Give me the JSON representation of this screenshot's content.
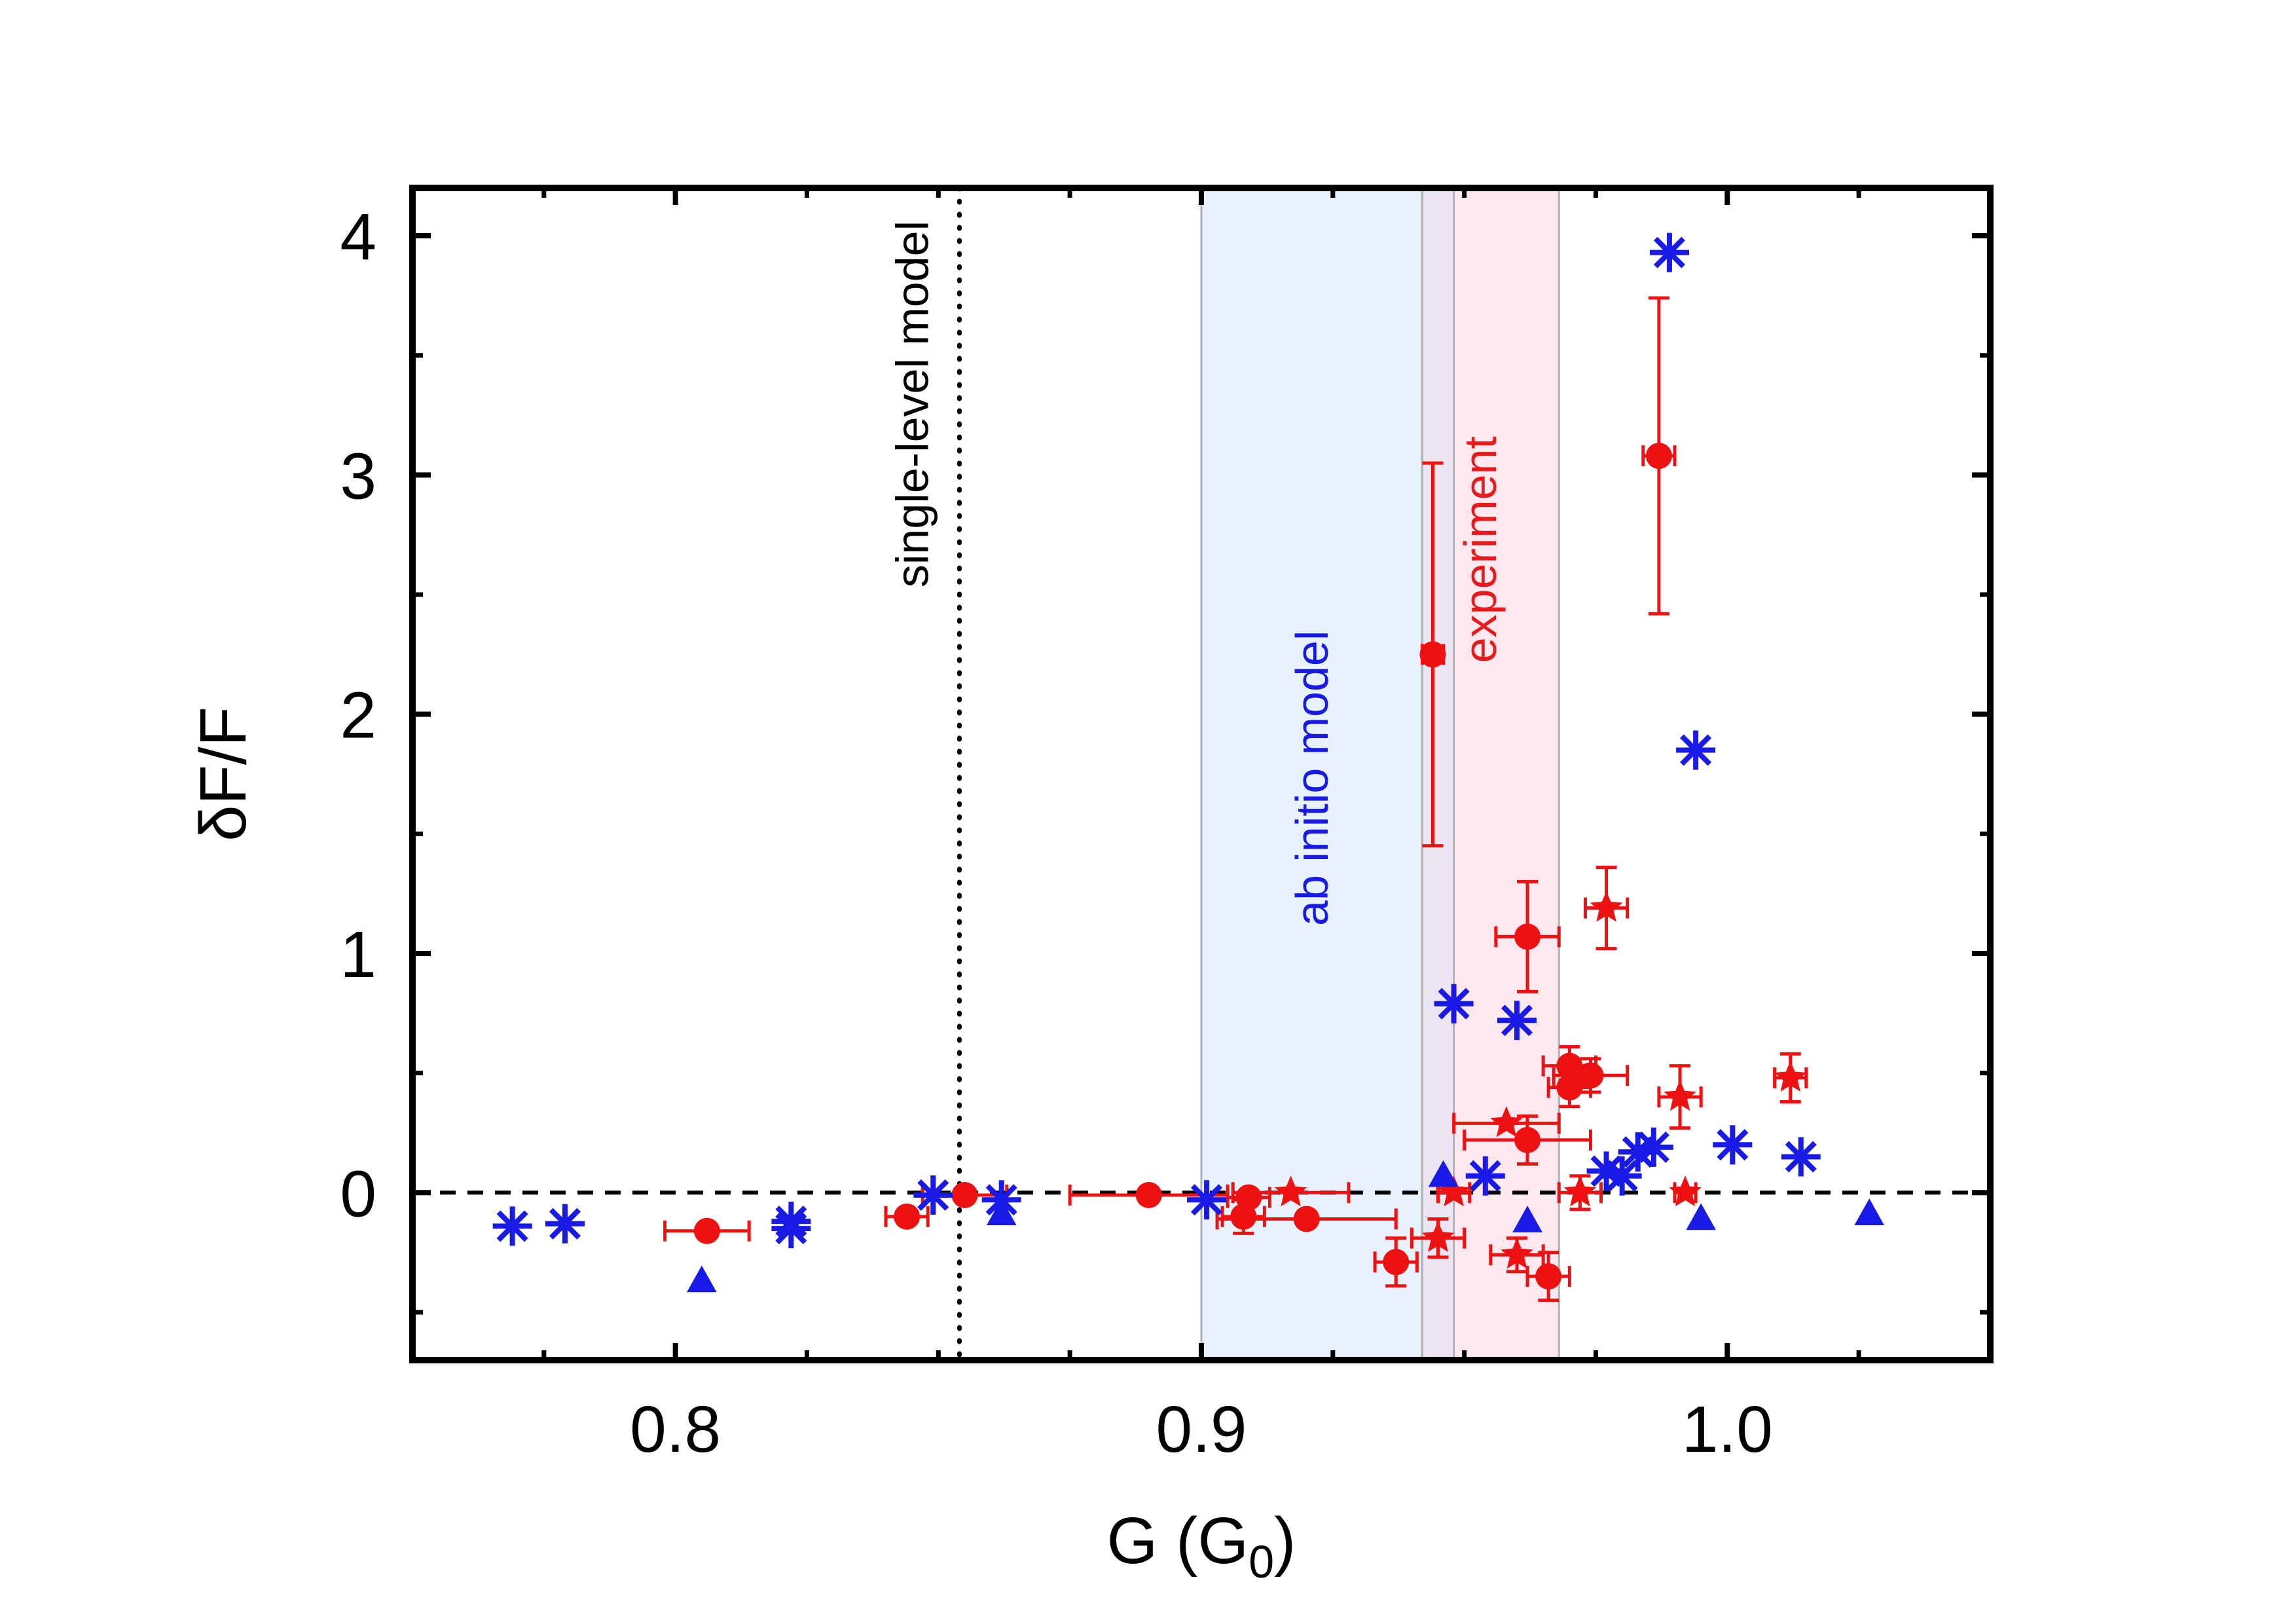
{
  "chart_data": {
    "type": "scatter",
    "title": "",
    "xlabel": "G (G",
    "xlabel_sub": "0",
    "xlabel_close": ")",
    "ylabel": "δF/F",
    "xlim": [
      0.75,
      1.05
    ],
    "ylim": [
      -0.7,
      4.2
    ],
    "x_ticks": [
      0.8,
      0.9,
      1.0
    ],
    "x_tick_labels": [
      "0.8",
      "0.9",
      "1.0"
    ],
    "y_ticks": [
      0,
      1,
      2,
      3,
      4
    ],
    "y_tick_labels": [
      "0",
      "1",
      "2",
      "3",
      "4"
    ],
    "grid": false,
    "legend": "none",
    "reference_lines": [
      {
        "kind": "horizontal",
        "y": 0,
        "style": "dashed",
        "color": "#000000"
      },
      {
        "kind": "vertical",
        "x": 0.854,
        "style": "dotted",
        "color": "#000000",
        "label": "single-level model"
      }
    ],
    "bands": [
      {
        "x0": 0.9,
        "x1": 0.948,
        "color": "#e8f2fc",
        "label": "ab initio model",
        "label_color": "#1a1ae6"
      },
      {
        "x0": 0.942,
        "x1": 0.968,
        "color": "#fce8ee",
        "label": "experiment",
        "label_color": "#e61a1a"
      }
    ],
    "overlap_color": "#ebe4f2",
    "colors": {
      "red": "#ee1111",
      "blue": "#1a1ae6"
    },
    "series": [
      {
        "marker": "circle",
        "color": "#ee1111",
        "points": [
          {
            "x": 0.806,
            "y": -0.16,
            "xerr": 0.008,
            "yerr": 0
          },
          {
            "x": 0.844,
            "y": -0.1,
            "xerr": 0.004,
            "yerr": 0
          },
          {
            "x": 0.855,
            "y": -0.01,
            "xerr": 0.008,
            "yerr": 0
          },
          {
            "x": 0.89,
            "y": -0.01,
            "xerr": 0.015,
            "yerr": 0
          },
          {
            "x": 0.908,
            "y": -0.1,
            "xerr": 0.004,
            "yerr": 0.07
          },
          {
            "x": 0.92,
            "y": -0.11,
            "xerr": 0.017,
            "yerr": 0
          },
          {
            "x": 0.909,
            "y": -0.02,
            "xerr": 0.004,
            "yerr": 0
          },
          {
            "x": 0.937,
            "y": -0.29,
            "xerr": 0.004,
            "yerr": 0.1
          },
          {
            "x": 0.944,
            "y": 2.25,
            "xerr": 0.002,
            "yerr": 0.8
          },
          {
            "x": 0.962,
            "y": 1.07,
            "xerr": 0.006,
            "yerr": 0.23
          },
          {
            "x": 0.962,
            "y": 0.22,
            "xerr": 0.012,
            "yerr": 0.1
          },
          {
            "x": 0.97,
            "y": 0.44,
            "xerr": 0.004,
            "yerr": 0.08
          },
          {
            "x": 0.97,
            "y": 0.53,
            "xerr": 0.005,
            "yerr": 0.08
          },
          {
            "x": 0.974,
            "y": 0.49,
            "xerr": 0.007,
            "yerr": 0.07
          },
          {
            "x": 0.966,
            "y": -0.35,
            "xerr": 0.004,
            "yerr": 0.1
          },
          {
            "x": 0.987,
            "y": 3.08,
            "xerr": 0.003,
            "yerr": 0.66
          }
        ]
      },
      {
        "marker": "star",
        "color": "#ee1111",
        "points": [
          {
            "x": 0.917,
            "y": 0.0,
            "xerr": 0.011,
            "yerr": 0
          },
          {
            "x": 0.945,
            "y": -0.19,
            "xerr": 0.005,
            "yerr": 0.08
          },
          {
            "x": 0.948,
            "y": 0.0,
            "xerr": 0.003,
            "yerr": 0
          },
          {
            "x": 0.958,
            "y": 0.29,
            "xerr": 0.01,
            "yerr": 0
          },
          {
            "x": 0.96,
            "y": -0.26,
            "xerr": 0.005,
            "yerr": 0.07
          },
          {
            "x": 0.972,
            "y": 0.0,
            "xerr": 0.004,
            "yerr": 0.07
          },
          {
            "x": 0.977,
            "y": 1.19,
            "xerr": 0.004,
            "yerr": 0.17
          },
          {
            "x": 0.991,
            "y": 0.4,
            "xerr": 0.004,
            "yerr": 0.13
          },
          {
            "x": 0.992,
            "y": 0.0,
            "xerr": 0.002,
            "yerr": 0
          },
          {
            "x": 1.012,
            "y": 0.48,
            "xerr": 0.003,
            "yerr": 0.1
          }
        ]
      },
      {
        "marker": "asterisk",
        "color": "#1a1ae6",
        "points": [
          {
            "x": 0.769,
            "y": -0.14
          },
          {
            "x": 0.779,
            "y": -0.13
          },
          {
            "x": 0.822,
            "y": -0.12
          },
          {
            "x": 0.822,
            "y": -0.15
          },
          {
            "x": 0.849,
            "y": -0.01
          },
          {
            "x": 0.862,
            "y": -0.03
          },
          {
            "x": 0.901,
            "y": -0.03
          },
          {
            "x": 0.948,
            "y": 0.79
          },
          {
            "x": 0.96,
            "y": 0.72
          },
          {
            "x": 0.954,
            "y": 0.07
          },
          {
            "x": 0.977,
            "y": 0.09
          },
          {
            "x": 0.98,
            "y": 0.07
          },
          {
            "x": 0.983,
            "y": 0.17
          },
          {
            "x": 0.986,
            "y": 0.19
          },
          {
            "x": 0.989,
            "y": 3.93
          },
          {
            "x": 0.994,
            "y": 1.85
          },
          {
            "x": 1.001,
            "y": 0.2
          },
          {
            "x": 1.014,
            "y": 0.15
          }
        ]
      },
      {
        "marker": "triangle",
        "color": "#1a1ae6",
        "points": [
          {
            "x": 0.805,
            "y": -0.37
          },
          {
            "x": 0.862,
            "y": -0.09
          },
          {
            "x": 0.946,
            "y": 0.07
          },
          {
            "x": 0.962,
            "y": -0.12
          },
          {
            "x": 0.995,
            "y": -0.11
          },
          {
            "x": 1.027,
            "y": -0.09
          }
        ]
      }
    ]
  }
}
